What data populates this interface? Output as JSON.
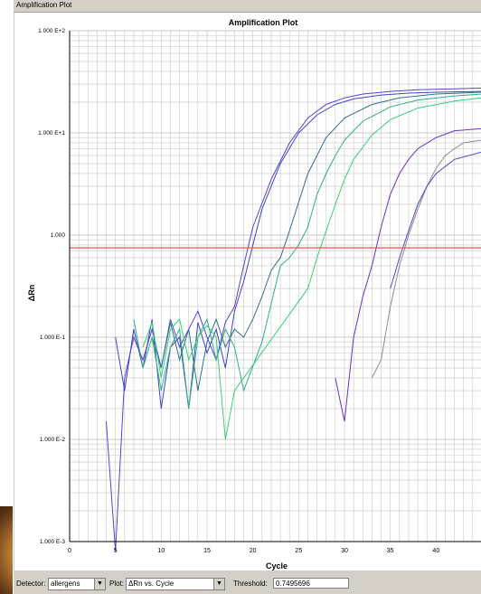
{
  "window": {
    "title": "Amplification Plot"
  },
  "plot": {
    "title": "Amplification Plot",
    "threshold_color": "#ff4a4a",
    "grid_color": "#c8c8c8"
  },
  "chart_data": {
    "type": "line",
    "title": "Amplification Plot",
    "xlabel": "Cycle",
    "ylabel": "ΔRn",
    "y_scale": "log",
    "xlim": [
      0,
      45
    ],
    "ylim": [
      0.001,
      100
    ],
    "x_ticks": [
      0,
      5,
      10,
      15,
      20,
      25,
      30,
      35,
      40
    ],
    "x_tick_labels": [
      "0",
      "5",
      "10",
      "15",
      "20",
      "25",
      "30",
      "35",
      "40"
    ],
    "y_ticks": [
      100,
      10,
      1,
      0.1,
      0.01,
      0.001
    ],
    "y_tick_labels": [
      "1.000 E+2",
      "1.000 E+1",
      "1.000",
      "1.000 E-1",
      "1.000 E-2",
      "1.000 E-3"
    ],
    "threshold": 0.7495696,
    "series": [
      {
        "color": "#5a3fd8",
        "x": [
          4,
          5,
          6,
          7,
          8,
          9,
          10,
          11,
          12,
          13,
          14,
          15,
          16,
          17,
          18,
          19,
          20,
          22,
          24,
          26,
          28,
          30,
          32,
          35,
          38,
          42,
          45
        ],
        "y": [
          0.015,
          0.0008,
          0.04,
          0.1,
          0.06,
          0.12,
          0.05,
          0.15,
          0.08,
          0.12,
          0.18,
          0.1,
          0.06,
          0.14,
          0.2,
          0.5,
          1.2,
          3.5,
          8,
          14,
          19,
          22,
          24,
          25.5,
          26.5,
          27,
          27.5
        ]
      },
      {
        "color": "#3b47c0",
        "x": [
          5,
          6,
          7,
          8,
          9,
          10,
          11,
          12,
          13,
          14,
          15,
          16,
          17,
          18,
          19,
          20,
          21,
          23,
          25,
          27,
          29,
          31,
          34,
          37,
          40,
          45
        ],
        "y": [
          0.1,
          0.03,
          0.12,
          0.05,
          0.15,
          0.02,
          0.08,
          0.1,
          0.02,
          0.14,
          0.07,
          0.12,
          0.05,
          0.18,
          0.35,
          0.8,
          1.8,
          5,
          10,
          15,
          19,
          21.5,
          23.5,
          24.5,
          25,
          25.5
        ]
      },
      {
        "color": "#2f6f8c",
        "x": [
          9,
          10,
          11,
          12,
          13,
          14,
          15,
          16,
          17,
          18,
          19,
          20,
          21,
          22,
          23,
          24,
          26,
          28,
          30,
          33,
          36,
          40,
          45
        ],
        "y": [
          0.1,
          0.05,
          0.14,
          0.06,
          0.12,
          0.03,
          0.09,
          0.15,
          0.08,
          0.12,
          0.1,
          0.15,
          0.25,
          0.45,
          0.6,
          1.1,
          4,
          9,
          14,
          19,
          22,
          24,
          25
        ]
      },
      {
        "color": "#2fae8a",
        "x": [
          7,
          8,
          9,
          10,
          11,
          12,
          13,
          14,
          15,
          16,
          17,
          18,
          19,
          21,
          23,
          24,
          25,
          26,
          27,
          28,
          29,
          30,
          32,
          35,
          38,
          42,
          45
        ],
        "y": [
          0.15,
          0.05,
          0.1,
          0.03,
          0.08,
          0.12,
          0.02,
          0.1,
          0.15,
          0.06,
          0.12,
          0.08,
          0.03,
          0.09,
          0.5,
          0.6,
          0.8,
          1.2,
          2.5,
          4,
          6,
          8.5,
          13,
          18,
          21,
          23,
          24
        ]
      },
      {
        "color": "#35d07a",
        "x": [
          8,
          9,
          10,
          11,
          12,
          13,
          14,
          15,
          16,
          17,
          18,
          26,
          27,
          28,
          29,
          30,
          31,
          33,
          35,
          38,
          42,
          45
        ],
        "y": [
          0.08,
          0.14,
          0.04,
          0.12,
          0.15,
          0.06,
          0.1,
          0.13,
          0.1,
          0.01,
          0.03,
          0.3,
          0.6,
          1.1,
          2,
          3.5,
          5.5,
          9.5,
          13.5,
          17.5,
          20.5,
          22
        ]
      },
      {
        "color": "#6a2fd0",
        "x": [
          29,
          30,
          31,
          32,
          33,
          34,
          35,
          36,
          37,
          38,
          40,
          42,
          45
        ],
        "y": [
          0.04,
          0.015,
          0.1,
          0.25,
          0.5,
          1.2,
          2.5,
          4,
          5.5,
          7,
          9,
          10.5,
          11
        ]
      },
      {
        "color": "#8a8a9a",
        "x": [
          33,
          34,
          35,
          36,
          37,
          38,
          39,
          40,
          41,
          42,
          43,
          45
        ],
        "y": [
          0.04,
          0.06,
          0.2,
          0.5,
          1,
          1.8,
          3,
          4.5,
          6,
          7,
          8,
          8.5
        ]
      },
      {
        "color": "#4a4fc8",
        "x": [
          35,
          36,
          37,
          38,
          39,
          40,
          42,
          45
        ],
        "y": [
          0.3,
          0.6,
          1.1,
          2,
          3,
          4,
          5.5,
          6.5
        ]
      }
    ]
  },
  "status_bar": {
    "detector_label": "Detector:",
    "detector_value": "allergens",
    "plot_label": "Plot:",
    "plot_value": "ΔRn vs. Cycle",
    "threshold_label": "Threshold:",
    "threshold_value": "0.7495696",
    "dropdown_glyph": "▼"
  }
}
